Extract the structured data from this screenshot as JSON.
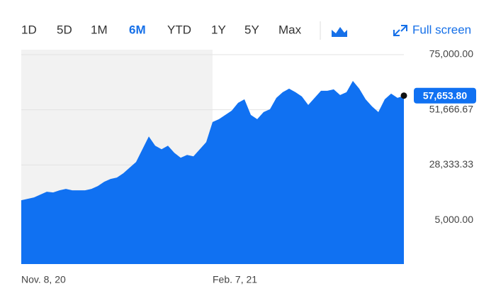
{
  "toolbar": {
    "ranges": [
      "1D",
      "5D",
      "1M",
      "6M",
      "YTD",
      "1Y",
      "5Y",
      "Max"
    ],
    "active_index": 3,
    "fullscreen": "Full screen"
  },
  "chart_data": {
    "type": "area",
    "color": "#1071f2",
    "grid": true,
    "categories": [
      "Nov. 8, 20",
      null,
      null,
      null,
      null,
      null,
      null,
      null,
      null,
      null,
      null,
      null,
      null,
      null,
      null,
      null,
      null,
      null,
      null,
      null,
      null,
      null,
      null,
      null,
      null,
      null,
      null,
      null,
      null,
      null,
      "Feb. 7, 21",
      null,
      null,
      null,
      null,
      null,
      null,
      null,
      null,
      null,
      null,
      null,
      null,
      null,
      null,
      null,
      null,
      null,
      null,
      null,
      null,
      null,
      null,
      null,
      null,
      null,
      null,
      null,
      null,
      null,
      null
    ],
    "values": [
      13400,
      14000,
      14600,
      15800,
      17000,
      16700,
      17600,
      18200,
      17600,
      17600,
      17600,
      18200,
      19400,
      21200,
      22400,
      23000,
      24800,
      27200,
      29600,
      35000,
      40400,
      36500,
      35000,
      36500,
      33500,
      31400,
      32600,
      32000,
      35000,
      38000,
      46500,
      47700,
      49500,
      51300,
      54600,
      56100,
      49500,
      47700,
      50700,
      51900,
      56700,
      59100,
      60600,
      59100,
      57300,
      53700,
      56700,
      59700,
      59700,
      60300,
      57900,
      59100,
      63900,
      60600,
      56100,
      53100,
      50700,
      56100,
      58500,
      56700,
      57653.8
    ],
    "last_price": {
      "value": 57653.8,
      "label": "57,653.80"
    },
    "ylim": [
      -13600,
      77100
    ],
    "yticks": [
      {
        "value": 75000,
        "label": "75,000.00"
      },
      {
        "value": 51666.67,
        "label": "51,666.67"
      },
      {
        "value": 28333.33,
        "label": "28,333.33"
      },
      {
        "value": 5000,
        "label": "5,000.00"
      }
    ]
  }
}
